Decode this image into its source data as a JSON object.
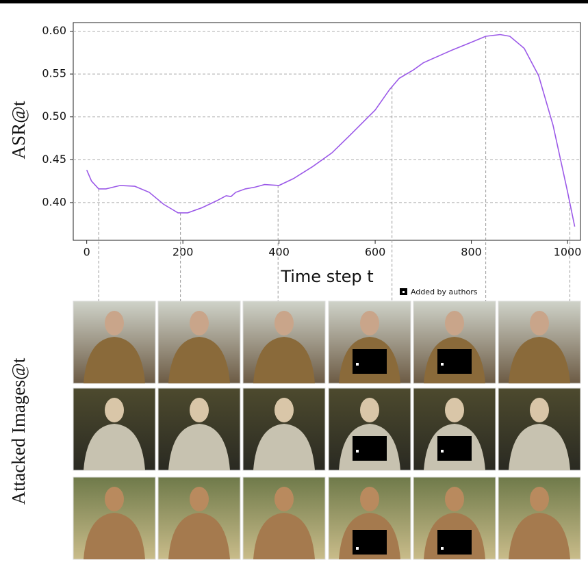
{
  "chart_data": {
    "type": "line",
    "y_label": "ASR@t",
    "x_label": "Time step t",
    "images_label": "Attacked Images@t",
    "note": "Added by authors",
    "color": "#9b59e8",
    "x": [
      0,
      10,
      25,
      40,
      70,
      100,
      130,
      160,
      190,
      210,
      240,
      270,
      290,
      300,
      310,
      330,
      350,
      370,
      400,
      430,
      470,
      510,
      550,
      600,
      630,
      650,
      680,
      700,
      740,
      760,
      800,
      830,
      860,
      880,
      910,
      940,
      970,
      1000,
      1015
    ],
    "values": [
      0.438,
      0.425,
      0.416,
      0.416,
      0.42,
      0.419,
      0.412,
      0.398,
      0.388,
      0.388,
      0.394,
      0.402,
      0.408,
      0.407,
      0.412,
      0.416,
      0.418,
      0.421,
      0.42,
      0.428,
      0.442,
      0.458,
      0.48,
      0.508,
      0.532,
      0.545,
      0.555,
      0.563,
      0.573,
      0.578,
      0.587,
      0.594,
      0.596,
      0.594,
      0.58,
      0.548,
      0.49,
      0.413,
      0.372
    ],
    "highlight_x": [
      25,
      195,
      398,
      635,
      830,
      1005
    ],
    "xlim": [
      -28,
      1027
    ],
    "ylim": [
      0.356,
      0.61
    ],
    "xticks": [
      0,
      200,
      400,
      600,
      800,
      1000
    ],
    "yticks": [
      {
        "value": 0.4,
        "label": "0.40"
      },
      {
        "value": 0.45,
        "label": "0.45"
      },
      {
        "value": 0.5,
        "label": "0.50"
      },
      {
        "value": 0.55,
        "label": "0.55"
      },
      {
        "value": 0.6,
        "label": "0.60"
      }
    ],
    "grid": true
  }
}
